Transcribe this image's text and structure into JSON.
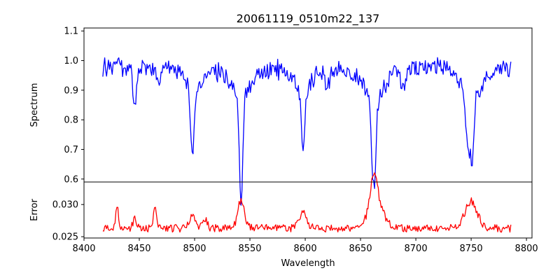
{
  "chart_data": [
    {
      "type": "line",
      "title": "20061119_0510m22_137",
      "ylabel": "Spectrum",
      "xlabel": "",
      "xlim": [
        8400,
        8805
      ],
      "ylim": [
        0.59,
        1.11
      ],
      "yticks": [
        0.6,
        0.7,
        0.8,
        0.9,
        1.0,
        1.1
      ],
      "ytick_labels": [
        "0.6",
        "0.7",
        "0.8",
        "0.9",
        "1.0",
        "1.1"
      ],
      "series": [
        {
          "name": "spectrum",
          "color": "#0000ff",
          "x_range": [
            8417,
            8786
          ],
          "baseline": 0.975,
          "noise_amplitude": 0.055,
          "absorption_lines": [
            {
              "center": 8446,
              "depth": 0.14,
              "width": 1.6
            },
            {
              "center": 8467,
              "depth": 0.06,
              "width": 2.0
            },
            {
              "center": 8498,
              "depth": 0.21,
              "width": 1.5
            },
            {
              "center": 8542,
              "depth": 0.35,
              "width": 1.5
            },
            {
              "center": 8598,
              "depth": 0.18,
              "width": 1.6
            },
            {
              "center": 8620,
              "depth": 0.06,
              "width": 2.5
            },
            {
              "center": 8662,
              "depth": 0.31,
              "width": 1.8
            },
            {
              "center": 8688,
              "depth": 0.06,
              "width": 2.5
            },
            {
              "center": 8747,
              "depth": 0.17,
              "width": 2.0
            },
            {
              "center": 8751,
              "depth": 0.2,
              "width": 1.6
            }
          ],
          "wings": [
            {
              "center": 8498,
              "depth": 0.08,
              "width": 7
            },
            {
              "center": 8542,
              "depth": 0.1,
              "width": 9
            },
            {
              "center": 8598,
              "depth": 0.08,
              "width": 8
            },
            {
              "center": 8662,
              "depth": 0.11,
              "width": 9
            },
            {
              "center": 8750,
              "depth": 0.09,
              "width": 9
            }
          ]
        }
      ]
    },
    {
      "type": "line",
      "title": "",
      "ylabel": "Error",
      "xlabel": "Wavelength",
      "xlim": [
        8400,
        8805
      ],
      "ylim": [
        0.0248,
        0.0335
      ],
      "xticks": [
        8400,
        8450,
        8500,
        8550,
        8600,
        8650,
        8700,
        8750,
        8800
      ],
      "xtick_labels": [
        "8400",
        "8450",
        "8500",
        "8550",
        "8600",
        "8650",
        "8700",
        "8750",
        "8800"
      ],
      "yticks": [
        0.025,
        0.03
      ],
      "ytick_labels": [
        "0.025",
        "0.030"
      ],
      "series": [
        {
          "name": "error",
          "color": "#ff0000",
          "x_range": [
            8417,
            8786
          ],
          "baseline": 0.0263,
          "noise_amplitude": 0.0012,
          "peaks": [
            {
              "center": 8430,
              "height": 0.0035,
              "width": 1.2
            },
            {
              "center": 8446,
              "height": 0.0014,
              "width": 2.0
            },
            {
              "center": 8464,
              "height": 0.0036,
              "width": 1.2
            },
            {
              "center": 8498,
              "height": 0.0022,
              "width": 2.5
            },
            {
              "center": 8509,
              "height": 0.0016,
              "width": 2.0
            },
            {
              "center": 8542,
              "height": 0.0045,
              "width": 3.0
            },
            {
              "center": 8598,
              "height": 0.0025,
              "width": 3.5
            },
            {
              "center": 8662,
              "height": 0.0052,
              "width": 3.0
            },
            {
              "center": 8664,
              "height": 0.0038,
              "width": 7.0
            },
            {
              "center": 8750,
              "height": 0.0042,
              "width": 5.5
            }
          ]
        }
      ]
    }
  ]
}
